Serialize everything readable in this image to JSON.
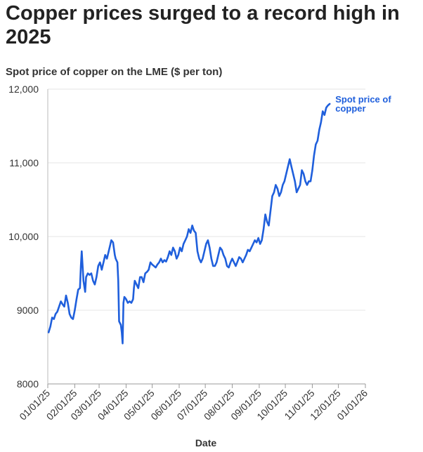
{
  "chart_data": {
    "type": "line",
    "title": "Copper prices surged to a record high in 2025",
    "subtitle": "Spot price of copper on the LME ($ per ton)",
    "xlabel": "Date",
    "ylabel": "",
    "ylim": [
      8000,
      12000
    ],
    "yticks": [
      {
        "value": 8000,
        "label": "8000"
      },
      {
        "value": 9000,
        "label": "9000"
      },
      {
        "value": 10000,
        "label": "10,000"
      },
      {
        "value": 11000,
        "label": "11,000"
      },
      {
        "value": 12000,
        "label": "12,000"
      }
    ],
    "xlim_days": [
      0,
      365
    ],
    "xticks": [
      {
        "day": 0,
        "label": "01/01/25"
      },
      {
        "day": 31,
        "label": "02/01/25"
      },
      {
        "day": 59,
        "label": "03/01/25"
      },
      {
        "day": 90,
        "label": "04/01/25"
      },
      {
        "day": 120,
        "label": "05/01/25"
      },
      {
        "day": 151,
        "label": "06/01/25"
      },
      {
        "day": 181,
        "label": "07/01/25"
      },
      {
        "day": 212,
        "label": "08/01/25"
      },
      {
        "day": 243,
        "label": "09/01/25"
      },
      {
        "day": 273,
        "label": "10/01/25"
      },
      {
        "day": 304,
        "label": "11/01/25"
      },
      {
        "day": 334,
        "label": "12/01/25"
      },
      {
        "day": 365,
        "label": "01/01/26"
      }
    ],
    "grid": "horizontal",
    "legend": "end-of-line",
    "color": "#1f5fdc",
    "series": [
      {
        "name": "Spot price of copper",
        "label_lines": [
          "Spot price of",
          "copper"
        ],
        "points": [
          [
            1,
            8700
          ],
          [
            3,
            8780
          ],
          [
            5,
            8900
          ],
          [
            7,
            8880
          ],
          [
            9,
            8950
          ],
          [
            11,
            8980
          ],
          [
            13,
            9050
          ],
          [
            15,
            9120
          ],
          [
            17,
            9080
          ],
          [
            19,
            9050
          ],
          [
            21,
            9200
          ],
          [
            23,
            9100
          ],
          [
            25,
            8950
          ],
          [
            27,
            8900
          ],
          [
            29,
            8880
          ],
          [
            31,
            9000
          ],
          [
            33,
            9150
          ],
          [
            35,
            9280
          ],
          [
            37,
            9300
          ],
          [
            38,
            9600
          ],
          [
            39,
            9800
          ],
          [
            41,
            9400
          ],
          [
            43,
            9250
          ],
          [
            44,
            9450
          ],
          [
            46,
            9500
          ],
          [
            48,
            9480
          ],
          [
            50,
            9500
          ],
          [
            52,
            9400
          ],
          [
            54,
            9350
          ],
          [
            56,
            9450
          ],
          [
            58,
            9600
          ],
          [
            60,
            9650
          ],
          [
            62,
            9550
          ],
          [
            64,
            9650
          ],
          [
            66,
            9750
          ],
          [
            68,
            9700
          ],
          [
            70,
            9800
          ],
          [
            72,
            9900
          ],
          [
            73,
            9950
          ],
          [
            75,
            9920
          ],
          [
            77,
            9750
          ],
          [
            78,
            9700
          ],
          [
            80,
            9650
          ],
          [
            81,
            9400
          ],
          [
            82,
            8850
          ],
          [
            84,
            8800
          ],
          [
            85,
            8700
          ],
          [
            86,
            8550
          ],
          [
            87,
            9100
          ],
          [
            88,
            9180
          ],
          [
            90,
            9150
          ],
          [
            92,
            9100
          ],
          [
            94,
            9120
          ],
          [
            96,
            9100
          ],
          [
            98,
            9150
          ],
          [
            99,
            9300
          ],
          [
            100,
            9400
          ],
          [
            102,
            9350
          ],
          [
            104,
            9300
          ],
          [
            106,
            9450
          ],
          [
            108,
            9450
          ],
          [
            110,
            9380
          ],
          [
            112,
            9500
          ],
          [
            114,
            9520
          ],
          [
            116,
            9550
          ],
          [
            118,
            9650
          ],
          [
            120,
            9620
          ],
          [
            122,
            9600
          ],
          [
            124,
            9580
          ],
          [
            126,
            9620
          ],
          [
            128,
            9650
          ],
          [
            130,
            9700
          ],
          [
            132,
            9650
          ],
          [
            134,
            9680
          ],
          [
            136,
            9660
          ],
          [
            138,
            9720
          ],
          [
            140,
            9800
          ],
          [
            142,
            9750
          ],
          [
            144,
            9850
          ],
          [
            146,
            9800
          ],
          [
            148,
            9700
          ],
          [
            150,
            9750
          ],
          [
            152,
            9850
          ],
          [
            154,
            9800
          ],
          [
            156,
            9900
          ],
          [
            158,
            9950
          ],
          [
            160,
            10000
          ],
          [
            162,
            10100
          ],
          [
            164,
            10050
          ],
          [
            166,
            10150
          ],
          [
            168,
            10080
          ],
          [
            170,
            10050
          ],
          [
            172,
            9800
          ],
          [
            174,
            9700
          ],
          [
            176,
            9650
          ],
          [
            178,
            9700
          ],
          [
            180,
            9800
          ],
          [
            182,
            9900
          ],
          [
            184,
            9950
          ],
          [
            186,
            9850
          ],
          [
            188,
            9700
          ],
          [
            190,
            9600
          ],
          [
            192,
            9600
          ],
          [
            194,
            9650
          ],
          [
            196,
            9750
          ],
          [
            198,
            9850
          ],
          [
            200,
            9820
          ],
          [
            202,
            9750
          ],
          [
            204,
            9700
          ],
          [
            206,
            9600
          ],
          [
            208,
            9580
          ],
          [
            210,
            9650
          ],
          [
            212,
            9700
          ],
          [
            214,
            9650
          ],
          [
            216,
            9600
          ],
          [
            218,
            9660
          ],
          [
            220,
            9720
          ],
          [
            222,
            9700
          ],
          [
            224,
            9650
          ],
          [
            226,
            9700
          ],
          [
            228,
            9750
          ],
          [
            230,
            9820
          ],
          [
            232,
            9800
          ],
          [
            234,
            9850
          ],
          [
            236,
            9900
          ],
          [
            238,
            9950
          ],
          [
            240,
            9920
          ],
          [
            242,
            9980
          ],
          [
            244,
            9900
          ],
          [
            246,
            9950
          ],
          [
            248,
            10100
          ],
          [
            250,
            10300
          ],
          [
            252,
            10200
          ],
          [
            254,
            10150
          ],
          [
            256,
            10350
          ],
          [
            258,
            10550
          ],
          [
            260,
            10600
          ],
          [
            262,
            10700
          ],
          [
            264,
            10650
          ],
          [
            266,
            10550
          ],
          [
            268,
            10600
          ],
          [
            270,
            10700
          ],
          [
            272,
            10750
          ],
          [
            274,
            10850
          ],
          [
            276,
            10950
          ],
          [
            278,
            11050
          ],
          [
            280,
            10950
          ],
          [
            282,
            10850
          ],
          [
            284,
            10750
          ],
          [
            286,
            10600
          ],
          [
            288,
            10650
          ],
          [
            290,
            10700
          ],
          [
            292,
            10900
          ],
          [
            294,
            10850
          ],
          [
            296,
            10750
          ],
          [
            298,
            10700
          ],
          [
            300,
            10750
          ],
          [
            302,
            10750
          ],
          [
            304,
            10900
          ],
          [
            306,
            11100
          ],
          [
            308,
            11250
          ],
          [
            310,
            11300
          ],
          [
            312,
            11450
          ],
          [
            314,
            11550
          ],
          [
            316,
            11700
          ],
          [
            318,
            11650
          ],
          [
            320,
            11750
          ],
          [
            322,
            11780
          ],
          [
            324,
            11800
          ]
        ]
      }
    ]
  }
}
